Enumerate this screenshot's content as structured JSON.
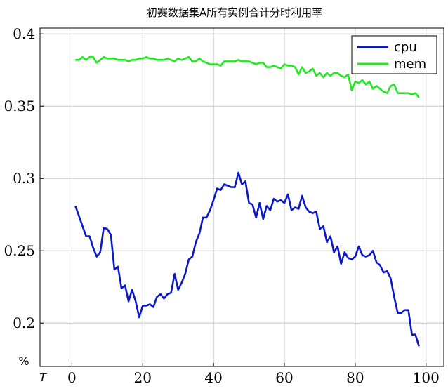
{
  "chart_data": {
    "type": "line",
    "title": "初赛数据集A所有实例合计分时利用率",
    "xlabel": "T",
    "ylabel": "%",
    "xlim": [
      -9,
      105
    ],
    "ylim": [
      0.17,
      0.404
    ],
    "xticks": [
      0,
      20,
      40,
      60,
      80,
      100
    ],
    "yticks": [
      0.2,
      0.25,
      0.3,
      0.35,
      0.4
    ],
    "xtick_labels": [
      "0",
      "20",
      "40",
      "60",
      "80",
      "100"
    ],
    "ytick_labels": [
      "0.2",
      "0.25",
      "0.3",
      "0.35",
      "0.4"
    ],
    "grid": true,
    "legend_position": "top-right",
    "series": [
      {
        "name": "cpu",
        "color": "#0a18c8",
        "x": [
          1,
          2,
          3,
          4,
          5,
          6,
          7,
          8,
          9,
          10,
          11,
          12,
          13,
          14,
          15,
          16,
          17,
          18,
          19,
          20,
          21,
          22,
          23,
          24,
          25,
          26,
          27,
          28,
          29,
          30,
          31,
          32,
          33,
          34,
          35,
          36,
          37,
          38,
          39,
          40,
          41,
          42,
          43,
          44,
          45,
          46,
          47,
          48,
          49,
          50,
          51,
          52,
          53,
          54,
          55,
          56,
          57,
          58,
          59,
          60,
          61,
          62,
          63,
          64,
          65,
          66,
          67,
          68,
          69,
          70,
          71,
          72,
          73,
          74,
          75,
          76,
          77,
          78,
          79,
          80,
          81,
          82,
          83,
          84,
          85,
          86,
          87,
          88,
          89,
          90,
          91,
          92,
          93,
          94,
          95,
          96,
          97,
          98
        ],
        "values": [
          0.281,
          0.274,
          0.267,
          0.26,
          0.26,
          0.252,
          0.246,
          0.249,
          0.266,
          0.265,
          0.261,
          0.237,
          0.239,
          0.224,
          0.226,
          0.215,
          0.223,
          0.215,
          0.204,
          0.212,
          0.212,
          0.213,
          0.211,
          0.218,
          0.22,
          0.217,
          0.22,
          0.221,
          0.234,
          0.223,
          0.228,
          0.234,
          0.244,
          0.246,
          0.256,
          0.262,
          0.273,
          0.273,
          0.278,
          0.285,
          0.293,
          0.292,
          0.296,
          0.295,
          0.294,
          0.294,
          0.304,
          0.296,
          0.298,
          0.283,
          0.282,
          0.273,
          0.283,
          0.272,
          0.281,
          0.278,
          0.286,
          0.284,
          0.285,
          0.283,
          0.289,
          0.278,
          0.28,
          0.279,
          0.288,
          0.28,
          0.277,
          0.276,
          0.277,
          0.265,
          0.267,
          0.256,
          0.26,
          0.249,
          0.253,
          0.241,
          0.249,
          0.245,
          0.244,
          0.246,
          0.253,
          0.247,
          0.246,
          0.247,
          0.25,
          0.242,
          0.24,
          0.235,
          0.236,
          0.231,
          0.218,
          0.207,
          0.207,
          0.209,
          0.209,
          0.192,
          0.192,
          0.184
        ]
      },
      {
        "name": "mem",
        "color": "#22e822",
        "x": [
          1,
          2,
          3,
          4,
          5,
          6,
          7,
          8,
          9,
          10,
          11,
          12,
          13,
          14,
          15,
          16,
          17,
          18,
          19,
          20,
          21,
          22,
          23,
          24,
          25,
          26,
          27,
          28,
          29,
          30,
          31,
          32,
          33,
          34,
          35,
          36,
          37,
          38,
          39,
          40,
          41,
          42,
          43,
          44,
          45,
          46,
          47,
          48,
          49,
          50,
          51,
          52,
          53,
          54,
          55,
          56,
          57,
          58,
          59,
          60,
          61,
          62,
          63,
          64,
          65,
          66,
          67,
          68,
          69,
          70,
          71,
          72,
          73,
          74,
          75,
          76,
          77,
          78,
          79,
          80,
          81,
          82,
          83,
          84,
          85,
          86,
          87,
          88,
          89,
          90,
          91,
          92,
          93,
          94,
          95,
          96,
          97,
          98
        ],
        "values": [
          0.382,
          0.382,
          0.384,
          0.382,
          0.384,
          0.384,
          0.38,
          0.382,
          0.384,
          0.383,
          0.383,
          0.383,
          0.382,
          0.382,
          0.382,
          0.381,
          0.382,
          0.382,
          0.383,
          0.383,
          0.384,
          0.383,
          0.383,
          0.382,
          0.382,
          0.382,
          0.383,
          0.382,
          0.381,
          0.383,
          0.382,
          0.383,
          0.384,
          0.381,
          0.381,
          0.383,
          0.381,
          0.38,
          0.379,
          0.379,
          0.379,
          0.378,
          0.381,
          0.381,
          0.381,
          0.381,
          0.382,
          0.381,
          0.381,
          0.381,
          0.38,
          0.379,
          0.38,
          0.38,
          0.377,
          0.377,
          0.378,
          0.377,
          0.376,
          0.379,
          0.378,
          0.378,
          0.377,
          0.372,
          0.377,
          0.373,
          0.374,
          0.376,
          0.371,
          0.373,
          0.37,
          0.373,
          0.371,
          0.373,
          0.373,
          0.371,
          0.37,
          0.372,
          0.361,
          0.367,
          0.366,
          0.368,
          0.365,
          0.367,
          0.362,
          0.364,
          0.362,
          0.36,
          0.359,
          0.364,
          0.365,
          0.359,
          0.359,
          0.359,
          0.359,
          0.358,
          0.359,
          0.356
        ]
      }
    ]
  }
}
